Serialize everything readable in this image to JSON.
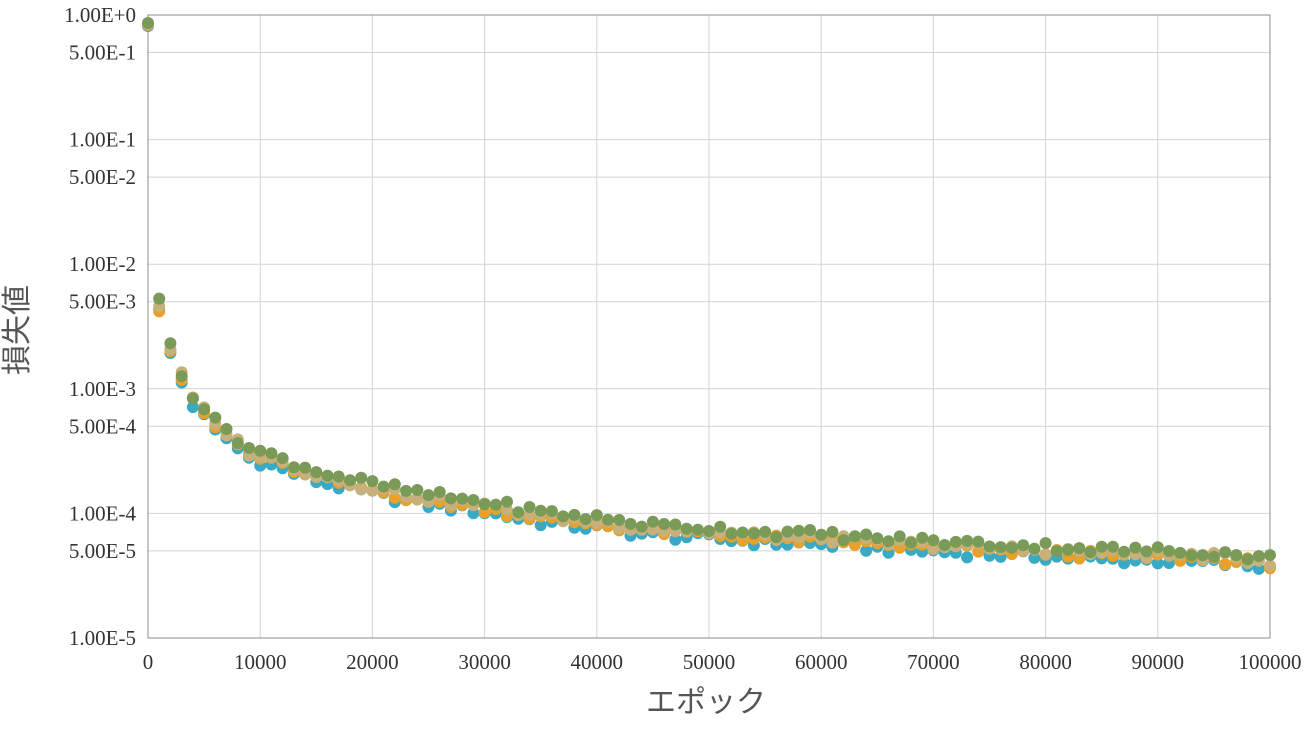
{
  "chart_data": {
    "type": "scatter",
    "title": "",
    "xlabel": "エポック",
    "ylabel": "損失値",
    "x_scale": "linear",
    "y_scale": "log",
    "xlim": [
      0,
      100000
    ],
    "ylim": [
      1e-05,
      1
    ],
    "grid": true,
    "legend": "none",
    "x_ticks": [
      "0",
      "10000",
      "20000",
      "30000",
      "40000",
      "50000",
      "60000",
      "70000",
      "80000",
      "90000",
      "100000"
    ],
    "y_ticks": [
      {
        "value": 1,
        "label": "1.00E+0"
      },
      {
        "value": 0.5,
        "label": "5.00E-1"
      },
      {
        "value": 0.1,
        "label": "1.00E-1"
      },
      {
        "value": 0.05,
        "label": "5.00E-2"
      },
      {
        "value": 0.01,
        "label": "1.00E-2"
      },
      {
        "value": 0.005,
        "label": "5.00E-3"
      },
      {
        "value": 0.001,
        "label": "1.00E-3"
      },
      {
        "value": 0.0005,
        "label": "5.00E-4"
      },
      {
        "value": 0.0001,
        "label": "1.00E-4"
      },
      {
        "value": 5e-05,
        "label": "5.00E-5"
      },
      {
        "value": 1e-05,
        "label": "1.00E-5"
      }
    ],
    "anchors": {
      "x": [
        0,
        1000,
        2000,
        3000,
        4000,
        5000,
        6000,
        7000,
        8000,
        9000,
        10000,
        12000,
        15000,
        17000,
        20000,
        25000,
        30000,
        35000,
        40000,
        45000,
        50000,
        55000,
        60000,
        65000,
        70000,
        75000,
        80000,
        85000,
        90000,
        95000,
        100000
      ],
      "y": [
        0.85,
        0.0048,
        0.0022,
        0.0013,
        0.00085,
        0.00068,
        0.00052,
        0.00046,
        0.00038,
        0.00032,
        0.0003,
        0.00026,
        0.00021,
        0.00019,
        0.000165,
        0.000135,
        0.000118,
        9.8e-05,
        8.8e-05,
        7.7e-05,
        7.3e-05,
        6.7e-05,
        6.5e-05,
        6e-05,
        5.7e-05,
        5.4e-05,
        5.2e-05,
        4.9e-05,
        4.8e-05,
        4.6e-05,
        4.2e-05
      ]
    },
    "series": [
      {
        "name": "",
        "color": "#3aa9c4",
        "offset": -0.06
      },
      {
        "name": "",
        "color": "#e8a12a",
        "offset": -0.03
      },
      {
        "name": "",
        "color": "#c8b07a",
        "offset": -0.01
      },
      {
        "name": "",
        "color": "#7a9a58",
        "offset": 0.02
      }
    ],
    "step": 1000
  }
}
